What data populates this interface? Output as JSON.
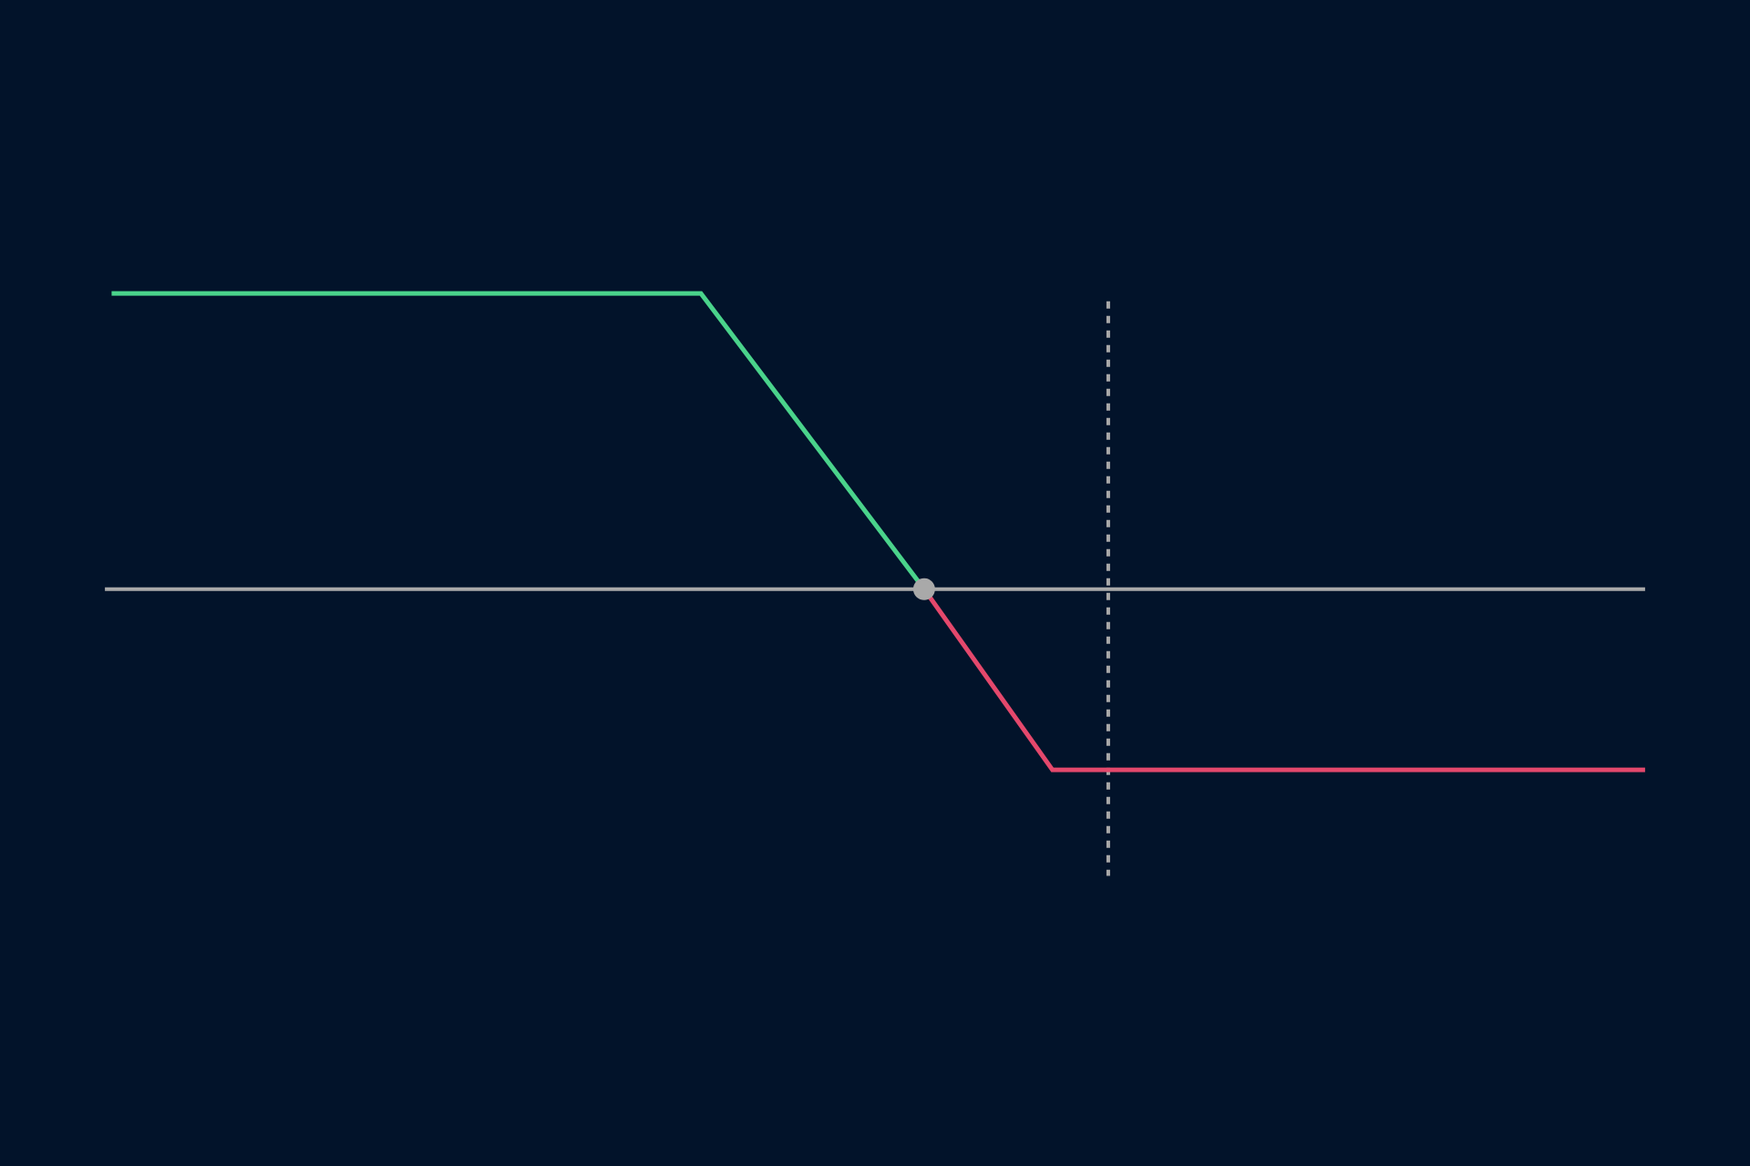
{
  "chart_data": {
    "type": "line",
    "xlim": [
      0,
      1568
    ],
    "ylim": [
      -517,
      528
    ],
    "zero_line": {
      "y": 0,
      "x": [
        94,
        1474
      ],
      "color": "#a9a9a9"
    },
    "marker": {
      "x": 993,
      "y": [
        258,
        -257
      ],
      "color": "#a9a9a9"
    },
    "breakeven": {
      "x": 828,
      "y": 0,
      "color": "#a9a9a9"
    },
    "series": [
      {
        "color": "#4ad38b",
        "x": [
          100,
          628,
          828
        ],
        "values": [
          265,
          265,
          0
        ]
      },
      {
        "color": "#e4486c",
        "x": [
          828,
          943,
          1474
        ],
        "values": [
          0,
          -162,
          -162
        ]
      }
    ]
  }
}
